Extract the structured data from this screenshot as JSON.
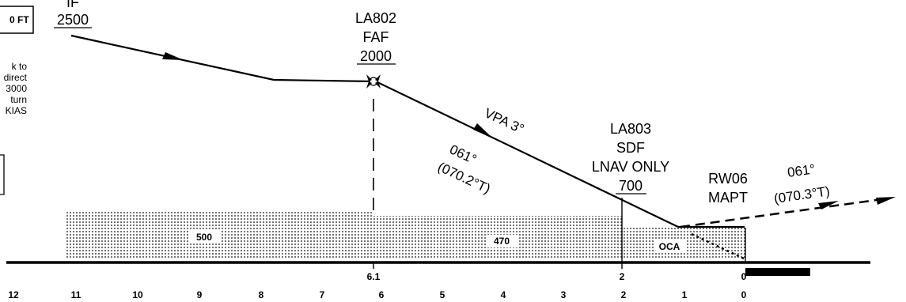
{
  "header": {
    "min_alt_box": "0 FT"
  },
  "notes": {
    "missed_approach_lines": [
      "k  to",
      "direct",
      "3000",
      "turn",
      "KIAS"
    ]
  },
  "fixes": {
    "if": {
      "name": "IF",
      "alt": "2500"
    },
    "faf": {
      "id": "LA802",
      "name": "FAF",
      "alt": "2000"
    },
    "sdf": {
      "id": "LA803",
      "name": "SDF",
      "note": "LNAV ONLY",
      "alt": "700"
    },
    "mapt": {
      "id": "RW06",
      "name": "MAPT"
    }
  },
  "final_track": {
    "mag": "061°",
    "true": "(070.2°T)",
    "vpa": "VPA 3°"
  },
  "missed_track": {
    "mag": "061°",
    "true": "(070.3°T)"
  },
  "obstacle_areas": {
    "seg1": "500",
    "seg2": "470",
    "seg3": "OCA"
  },
  "dme_top": {
    "faf": "6.1",
    "sdf": "2",
    "thr": "0"
  },
  "distance_scale": [
    "12",
    "11",
    "10",
    "9",
    "8",
    "7",
    "6",
    "5",
    "4",
    "3",
    "2",
    "1",
    "0"
  ],
  "colors": {
    "ink": "#000000",
    "background": "#ffffff"
  }
}
